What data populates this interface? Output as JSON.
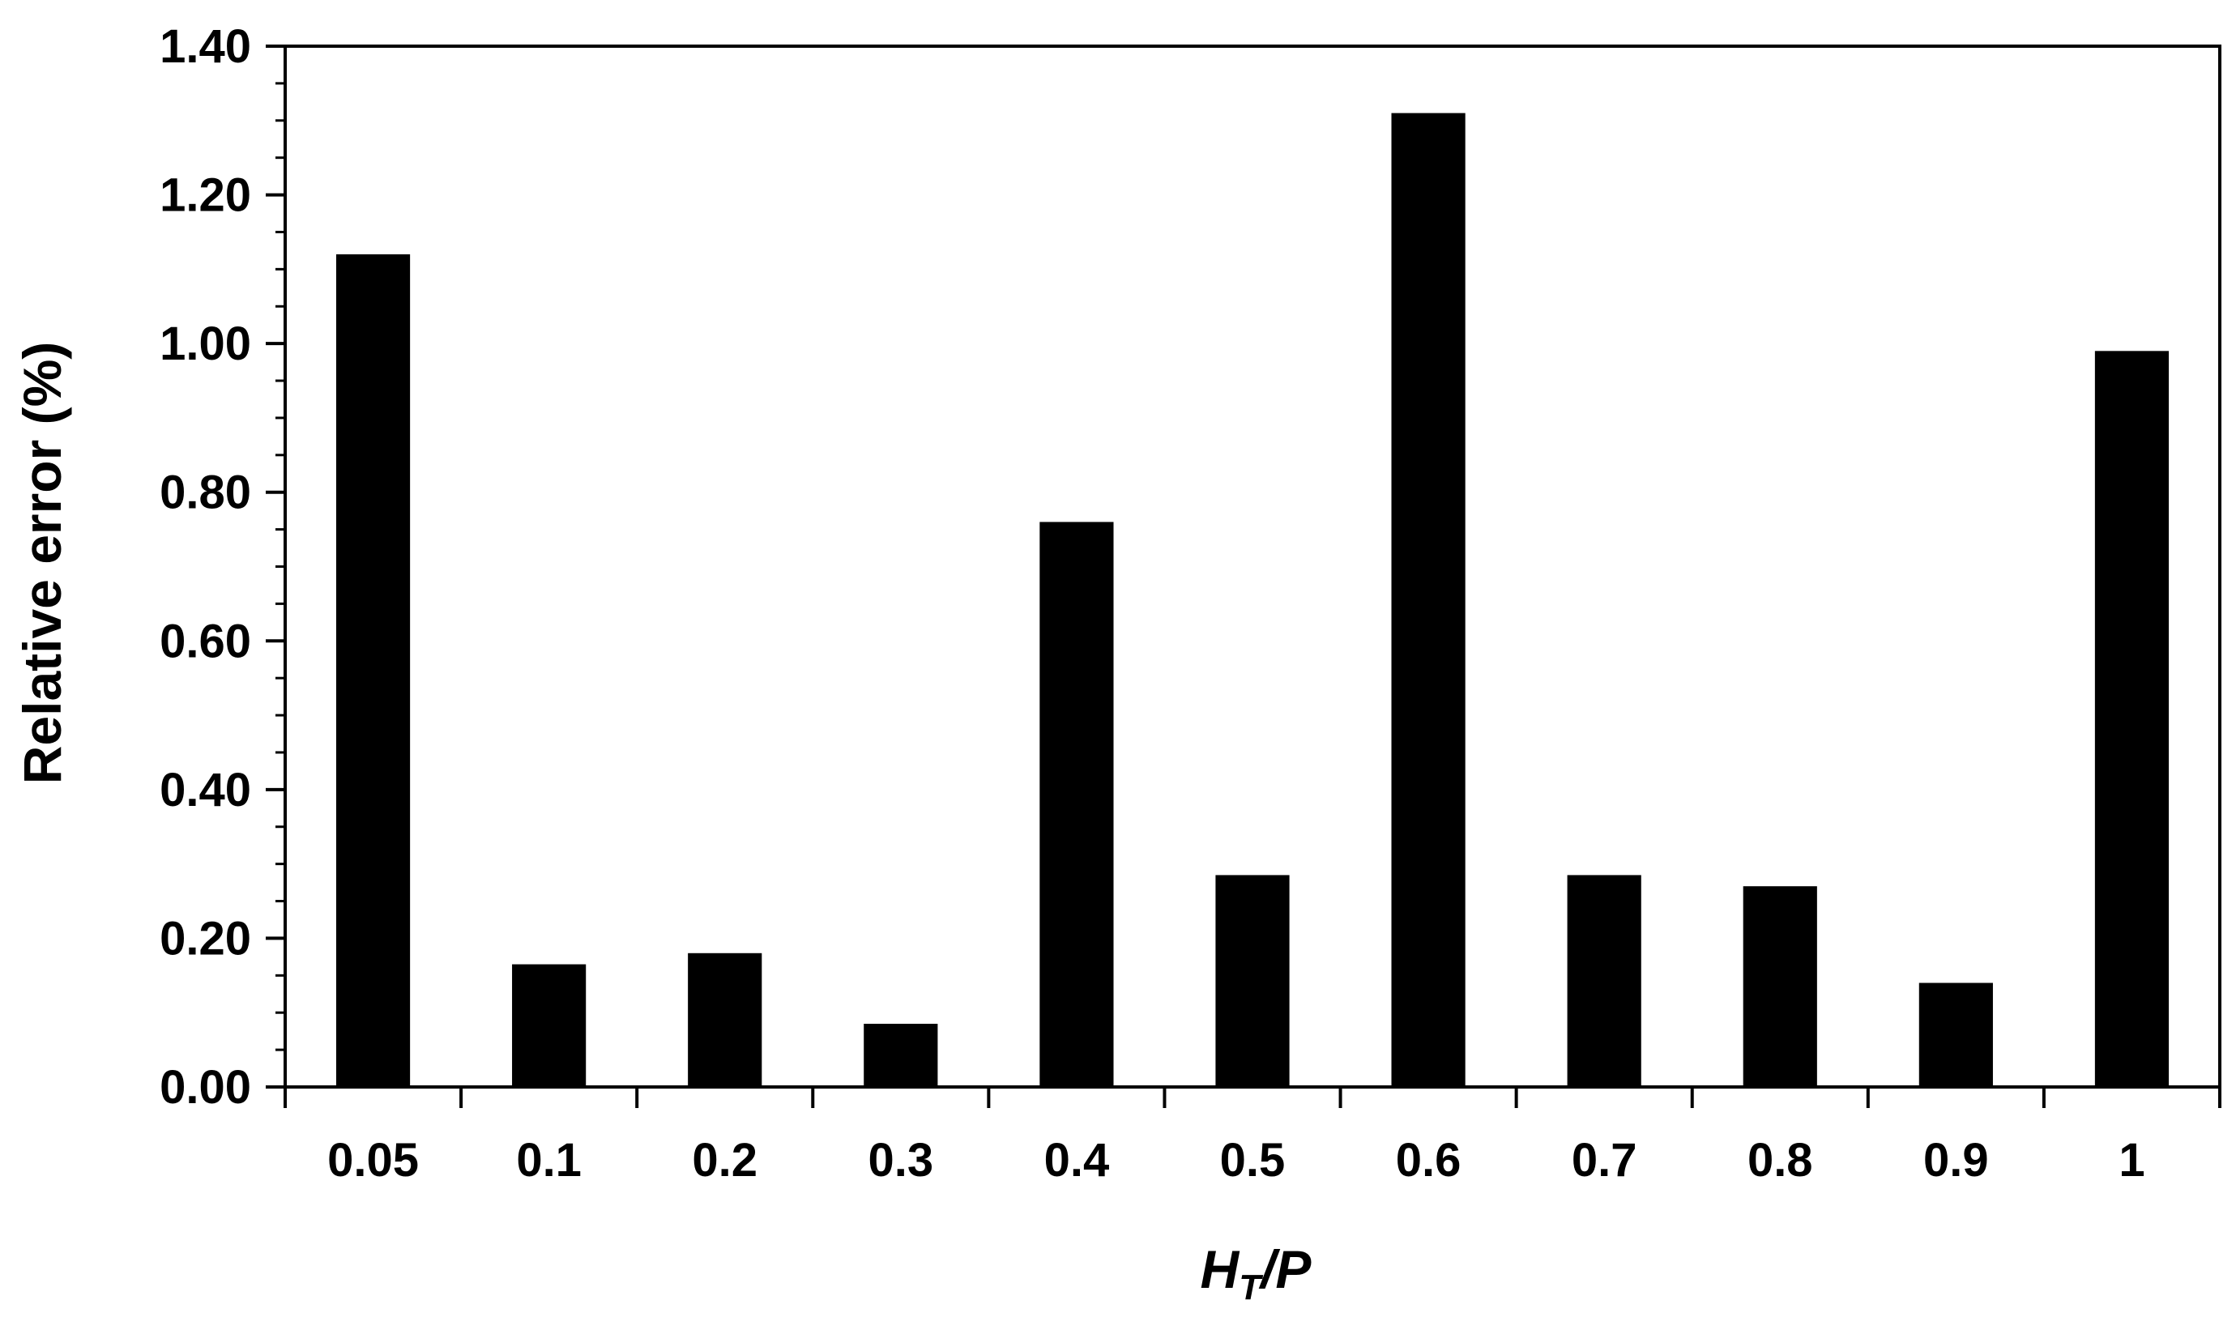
{
  "chart_data": {
    "type": "bar",
    "categories": [
      "0.05",
      "0.1",
      "0.2",
      "0.3",
      "0.4",
      "0.5",
      "0.6",
      "0.7",
      "0.8",
      "0.9",
      "1"
    ],
    "values": [
      1.12,
      0.165,
      0.18,
      0.085,
      0.76,
      0.285,
      1.31,
      0.285,
      0.27,
      0.14,
      0.99
    ],
    "xlabel_main": "H",
    "xlabel_sub": "T",
    "xlabel_tail": "/P",
    "ylabel": "Relative error (%)",
    "ylim": [
      0,
      1.4
    ],
    "yticks": [
      "0.00",
      "0.20",
      "0.40",
      "0.60",
      "0.80",
      "1.00",
      "1.20",
      "1.40"
    ],
    "bar_color": "#000000",
    "grid": false,
    "legend": "none"
  }
}
